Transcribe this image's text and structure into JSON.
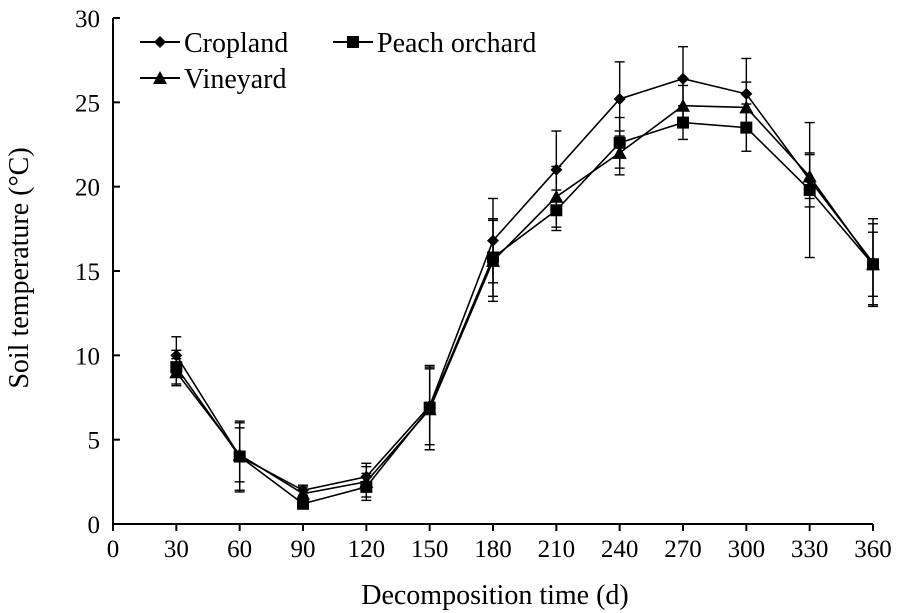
{
  "chart_data": {
    "type": "line",
    "title": "",
    "xlabel": "Decomposition time (d)",
    "ylabel": "Soil temperature (°C)",
    "xlim": [
      0,
      360
    ],
    "ylim": [
      0,
      30
    ],
    "x_ticks": [
      0,
      30,
      60,
      90,
      120,
      150,
      180,
      210,
      240,
      270,
      300,
      330,
      360
    ],
    "y_ticks": [
      0,
      5,
      10,
      15,
      20,
      25,
      30
    ],
    "grid": false,
    "legend_position": "top-left",
    "x": [
      30,
      60,
      90,
      120,
      150,
      180,
      210,
      240,
      270,
      300,
      330,
      360
    ],
    "series": [
      {
        "name": "Cropland",
        "marker": "diamond",
        "values": [
          10.0,
          4.0,
          2.0,
          2.8,
          7.0,
          16.8,
          21.0,
          25.2,
          26.4,
          25.5,
          20.4,
          15.5
        ],
        "errors": [
          1.1,
          2.0,
          0.3,
          0.8,
          2.3,
          2.5,
          2.3,
          2.2,
          1.9,
          2.1,
          1.6,
          2.6
        ]
      },
      {
        "name": "Peach orchard",
        "marker": "square",
        "values": [
          9.3,
          4.0,
          1.2,
          2.2,
          6.9,
          15.8,
          18.6,
          22.6,
          23.8,
          23.5,
          19.8,
          15.4
        ],
        "errors": [
          1.0,
          2.1,
          0.3,
          0.8,
          2.5,
          2.3,
          1.2,
          1.5,
          1.0,
          1.4,
          4.0,
          1.9
        ]
      },
      {
        "name": "Vineyard",
        "marker": "triangle",
        "values": [
          9.0,
          4.1,
          1.8,
          2.5,
          6.8,
          15.6,
          19.4,
          22.0,
          24.8,
          24.7,
          20.6,
          15.4
        ],
        "errors": [
          0.8,
          1.6,
          0.4,
          0.9,
          2.4,
          2.4,
          1.8,
          1.3,
          1.2,
          1.5,
          1.3,
          2.4
        ]
      }
    ]
  }
}
